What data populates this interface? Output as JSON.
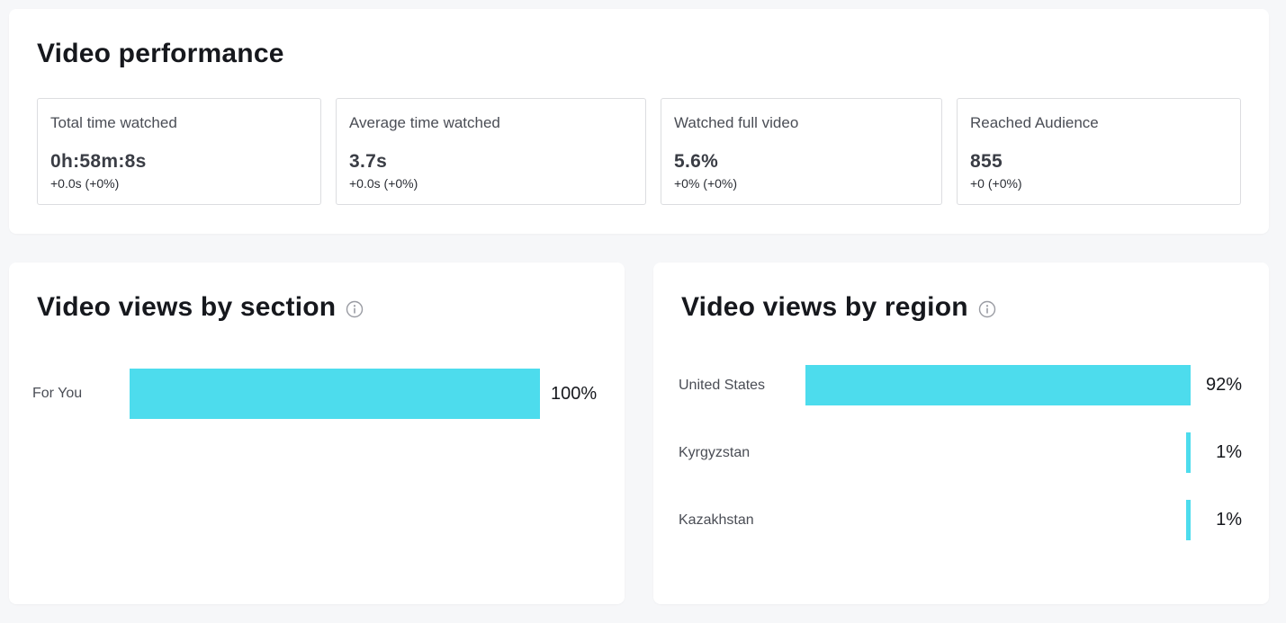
{
  "performance": {
    "title": "Video performance",
    "metrics": [
      {
        "label": "Total time watched",
        "value": "0h:58m:8s",
        "delta": "+0.0s (+0%)"
      },
      {
        "label": "Average time watched",
        "value": "3.7s",
        "delta": "+0.0s (+0%)"
      },
      {
        "label": "Watched full video",
        "value": "5.6%",
        "delta": "+0% (+0%)"
      },
      {
        "label": "Reached Audience",
        "value": "855",
        "delta": "+0 (+0%)"
      }
    ]
  },
  "by_section": {
    "title": "Video views by section",
    "icon": "info-icon",
    "rows": [
      {
        "label": "For You",
        "value": "100%",
        "percent": 100
      }
    ]
  },
  "by_region": {
    "title": "Video views by region",
    "icon": "info-icon",
    "rows": [
      {
        "label": "United States",
        "value": "92%",
        "percent": 92
      },
      {
        "label": "Kyrgyzstan",
        "value": "1%",
        "percent": 1
      },
      {
        "label": "Kazakhstan",
        "value": "1%",
        "percent": 1
      }
    ]
  },
  "colors": {
    "bar": "#4ddced",
    "background": "#f6f7f9",
    "card": "#ffffff"
  }
}
